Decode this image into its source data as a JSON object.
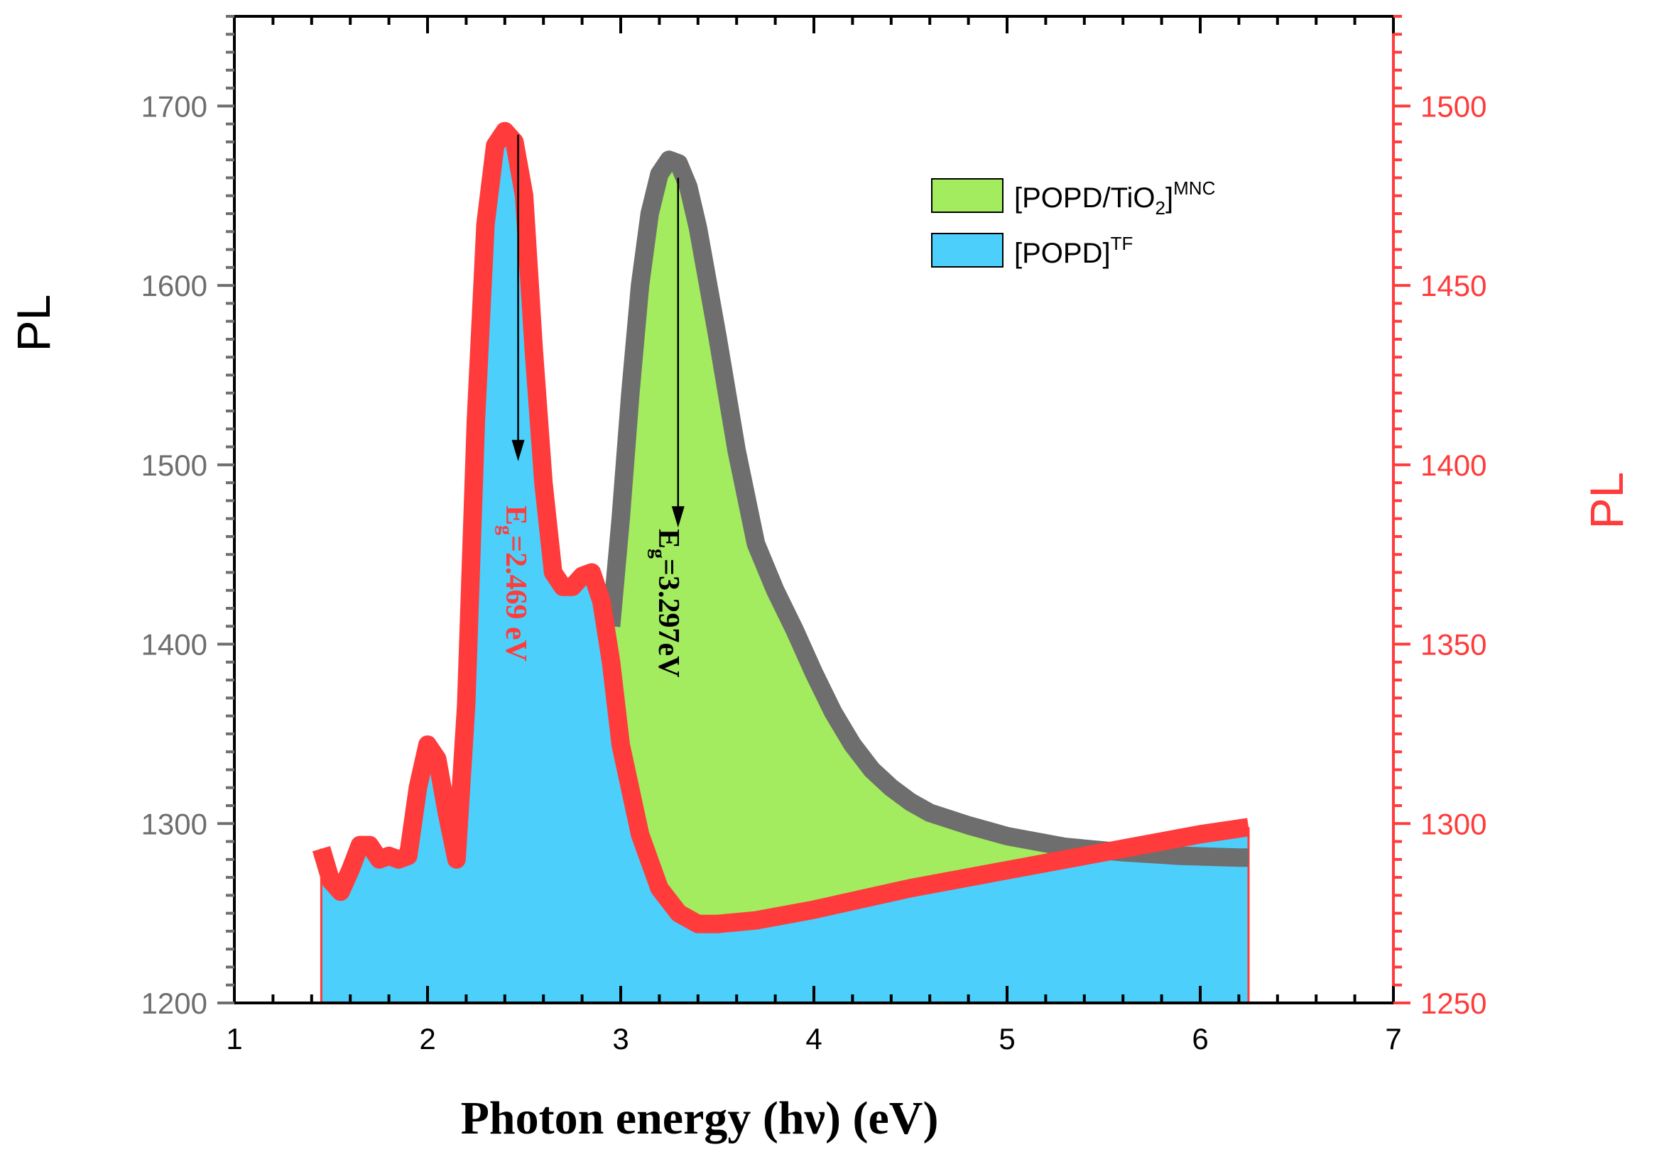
{
  "chart_data": {
    "type": "area",
    "title": "",
    "xlabel": "Photon energy (hν) (eV)",
    "ylabel_left": "PL",
    "ylabel_right": "PL",
    "xlim": [
      1,
      7
    ],
    "ylim_left": [
      1200,
      1750
    ],
    "ylim_right": [
      1250,
      1525
    ],
    "xticks": [
      1,
      2,
      3,
      4,
      5,
      6,
      7
    ],
    "yticks_left": [
      1200,
      1300,
      1400,
      1500,
      1600,
      1700
    ],
    "yticks_right": [
      1250,
      1300,
      1350,
      1400,
      1450,
      1500
    ],
    "colors": {
      "left_axis": "#6e6e6e",
      "right_axis": "#ff3b3b",
      "green_fill": "#a3eb5f",
      "blue_fill": "#4ccffb",
      "gray_line": "#6e6e6e",
      "red_line": "#ff3b3b"
    },
    "legend_location": "top-right",
    "series": [
      {
        "name": "[POPD/TiO2]MNC",
        "legend_main": "[POPD/TiO",
        "legend_sub": "2",
        "legend_close": "]",
        "legend_sup": "MNC",
        "axis": "left",
        "fill": "green",
        "x": [
          2.95,
          3.0,
          3.05,
          3.1,
          3.15,
          3.2,
          3.25,
          3.3,
          3.35,
          3.4,
          3.5,
          3.6,
          3.7,
          3.8,
          3.9,
          4.0,
          4.1,
          4.2,
          4.3,
          4.4,
          4.5,
          4.6,
          4.8,
          5.0,
          5.3,
          5.6,
          5.9,
          6.2
        ],
        "y": [
          1410,
          1470,
          1540,
          1600,
          1640,
          1662,
          1670,
          1668,
          1655,
          1632,
          1572,
          1508,
          1456,
          1430,
          1408,
          1384,
          1362,
          1344,
          1330,
          1320,
          1312,
          1306,
          1299,
          1293,
          1287,
          1284,
          1282,
          1281
        ]
      },
      {
        "name": "[POPD]TF",
        "legend_main": "[POPD]",
        "legend_sup": "TF",
        "axis": "right",
        "fill": "blue",
        "x": [
          1.45,
          1.5,
          1.55,
          1.6,
          1.65,
          1.7,
          1.75,
          1.8,
          1.85,
          1.9,
          1.95,
          2.0,
          2.05,
          2.1,
          2.15,
          2.2,
          2.25,
          2.3,
          2.35,
          2.4,
          2.45,
          2.5,
          2.55,
          2.6,
          2.65,
          2.7,
          2.75,
          2.8,
          2.85,
          2.9,
          2.95,
          3.0,
          3.1,
          3.2,
          3.3,
          3.4,
          3.5,
          3.7,
          4.0,
          4.5,
          5.0,
          5.5,
          6.0,
          6.25
        ],
        "y": [
          1293,
          1284,
          1281,
          1287,
          1294,
          1294,
          1290,
          1291,
          1290,
          1291,
          1310,
          1322,
          1318,
          1303,
          1290,
          1333,
          1412,
          1467,
          1489,
          1493,
          1490,
          1475,
          1432,
          1395,
          1370,
          1366,
          1366,
          1369,
          1370,
          1362,
          1345,
          1322,
          1297,
          1282,
          1275,
          1272,
          1272,
          1273,
          1276,
          1282,
          1287,
          1292,
          1297,
          1299
        ]
      }
    ],
    "gray_tail_x": [
      6.2,
      6.25
    ],
    "gray_tail_y": [
      1281,
      1281
    ],
    "annotations": [
      {
        "x": 2.469,
        "y_top": 1492,
        "y_bottom": 1401,
        "axis": "right",
        "prefix": "E",
        "sub": "g",
        "text": "=2.469 eV",
        "color": "#ff3b3b"
      },
      {
        "x": 3.297,
        "y_top": 1660,
        "y_bottom": 1465,
        "axis": "left",
        "prefix": "E",
        "sub": "g",
        "text": "=3.297eV",
        "color": "#000000"
      }
    ]
  }
}
